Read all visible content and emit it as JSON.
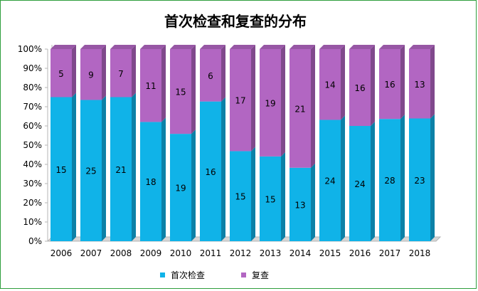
{
  "chart_data": {
    "type": "bar",
    "stacked": "percent",
    "title": "首次检查和复查的分布",
    "categories": [
      "2006",
      "2007",
      "2008",
      "2009",
      "2010",
      "2011",
      "2012",
      "2013",
      "2014",
      "2015",
      "2016",
      "2017",
      "2018"
    ],
    "series": [
      {
        "name": "首次检查",
        "values": [
          15,
          25,
          21,
          18,
          19,
          16,
          15,
          15,
          13,
          24,
          24,
          28,
          23
        ],
        "color": "#10b3e8"
      },
      {
        "name": "复查",
        "values": [
          5,
          9,
          7,
          11,
          15,
          6,
          17,
          19,
          21,
          14,
          16,
          16,
          13
        ],
        "color": "#b266c2"
      }
    ],
    "y_tick_labels": [
      "0%",
      "10%",
      "20%",
      "30%",
      "40%",
      "50%",
      "60%",
      "70%",
      "80%",
      "90%",
      "100%"
    ],
    "ylim": [
      0,
      100
    ],
    "grid": false,
    "legend_position": "bottom",
    "xlabel": "",
    "ylabel": ""
  },
  "colors": {
    "frame_border": "#2f9e3d",
    "axis": "#b5b5b5",
    "floor": "#d7d7d7"
  }
}
